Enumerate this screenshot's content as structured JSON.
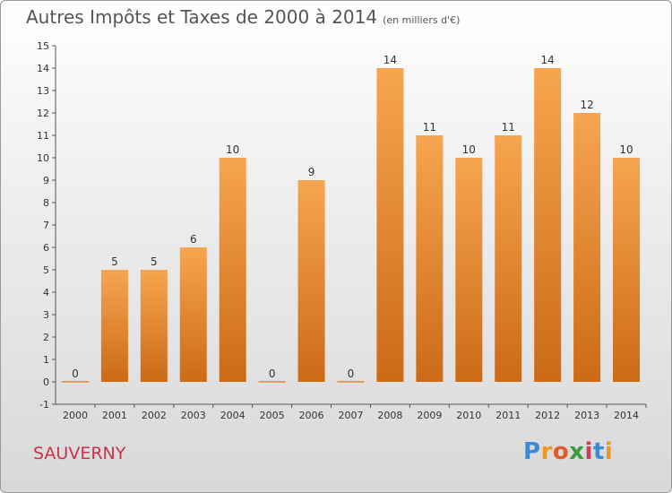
{
  "title": "Autres Impôts et Taxes de 2000 à 2014",
  "subtitle": "(en milliers d'€)",
  "town": "SAUVERNY",
  "logo": [
    "P",
    "r",
    "o",
    "x",
    "i",
    "t",
    "i"
  ],
  "colors": {
    "bar_top": "#f7a550",
    "bar_bottom": "#cc6a16",
    "axis": "#555555",
    "town": "#c8344a"
  },
  "chart_data": {
    "type": "bar",
    "categories": [
      "2000",
      "2001",
      "2002",
      "2003",
      "2004",
      "2005",
      "2006",
      "2007",
      "2008",
      "2009",
      "2010",
      "2011",
      "2012",
      "2013",
      "2014"
    ],
    "values": [
      0,
      5,
      5,
      6,
      10,
      0,
      9,
      0,
      14,
      11,
      10,
      11,
      14,
      12,
      10
    ],
    "data_labels": [
      "0",
      "5",
      "5",
      "6",
      "10",
      "0",
      "9",
      "0",
      "14",
      "11",
      "10",
      "11",
      "14",
      "12",
      "10"
    ],
    "ylim": [
      -1,
      15
    ],
    "y_ticks": [
      "-1",
      "0",
      "1",
      "2",
      "3",
      "4",
      "5",
      "6",
      "7",
      "8",
      "9",
      "10",
      "11",
      "12",
      "13",
      "14",
      "15"
    ],
    "title": "Autres Impôts et Taxes de 2000 à 2014",
    "subtitle": "(en milliers d'€)",
    "xlabel": "",
    "ylabel": "",
    "grid": false
  }
}
